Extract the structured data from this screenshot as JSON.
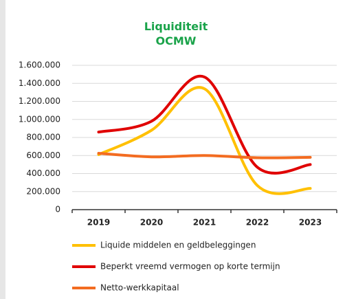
{
  "chart_data": {
    "type": "line",
    "title": "Liquiditeit OCMW",
    "categories": [
      "2019",
      "2020",
      "2021",
      "2022",
      "2023"
    ],
    "series": [
      {
        "name": "Liquide middelen en geldbeleggingen",
        "color": "#ffc000",
        "values": [
          610000,
          880000,
          1340000,
          267000,
          235000
        ]
      },
      {
        "name": "Beperkt vreemd vermogen op korte termijn",
        "color": "#e00000",
        "values": [
          860000,
          980000,
          1470000,
          470000,
          500000
        ]
      },
      {
        "name": "Netto-werkkapitaal",
        "color": "#f36c21",
        "values": [
          625000,
          585000,
          600000,
          575000,
          580000
        ]
      }
    ],
    "ylim": [
      0,
      1600000
    ],
    "yticks": [
      0,
      {
        "value": 200000,
        "label": "200.000"
      },
      {
        "value": 400000,
        "label": "400.000"
      },
      {
        "value": 600000,
        "label": "600.000"
      },
      {
        "value": 800000,
        "label": "800.000"
      },
      {
        "value": 1000000,
        "label": "1.000.000"
      },
      {
        "value": 1200000,
        "label": "1.200.000"
      },
      {
        "value": 1400000,
        "label": "1.400.000"
      },
      {
        "value": 1600000,
        "label": "1.600.000"
      }
    ],
    "grid": true
  }
}
